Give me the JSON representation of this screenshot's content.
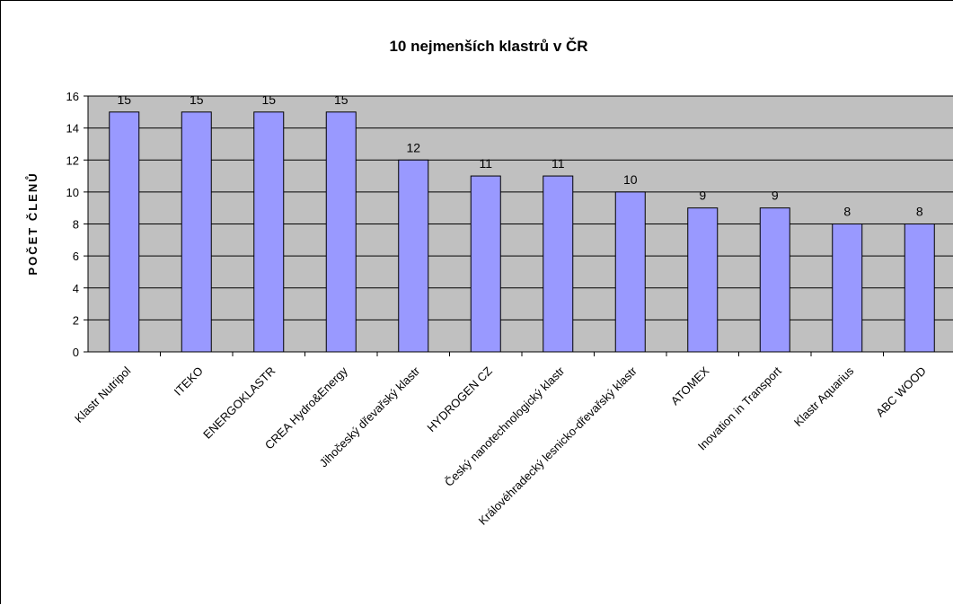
{
  "colors": {
    "plot_background": "#c0c0c0",
    "bar_fill": "#9999ff",
    "bar_stroke": "#000000",
    "gridline": "#000000",
    "page_background": "#ffffff"
  },
  "chart_data": {
    "type": "bar",
    "title": "10 nejmenších klastrů v ČR",
    "xlabel": "",
    "ylabel": "POČET ČLENŮ",
    "ylim": [
      0,
      16
    ],
    "yticks": [
      0,
      2,
      4,
      6,
      8,
      10,
      12,
      14,
      16
    ],
    "grid": true,
    "legend": "none",
    "categories": [
      "Klastr Nutripol",
      "ITEKO",
      "ENERGOKLASTR",
      "CREA Hydro&Energy",
      "Jihočeský dřevařský klastr",
      "HYDROGEN CZ",
      "Český nanotechnologický klastr",
      "Královéhradecký lesnicko-dřevařský klastr",
      "ATOMEX",
      "Inovation in Transport",
      "Klastr Aquarius",
      "ABC WOOD"
    ],
    "values": [
      15,
      15,
      15,
      15,
      12,
      11,
      11,
      10,
      9,
      9,
      8,
      8
    ],
    "data_labels": [
      "15",
      "15",
      "15",
      "15",
      "12",
      "11",
      "11",
      "10",
      "9",
      "9",
      "8",
      "8"
    ]
  }
}
